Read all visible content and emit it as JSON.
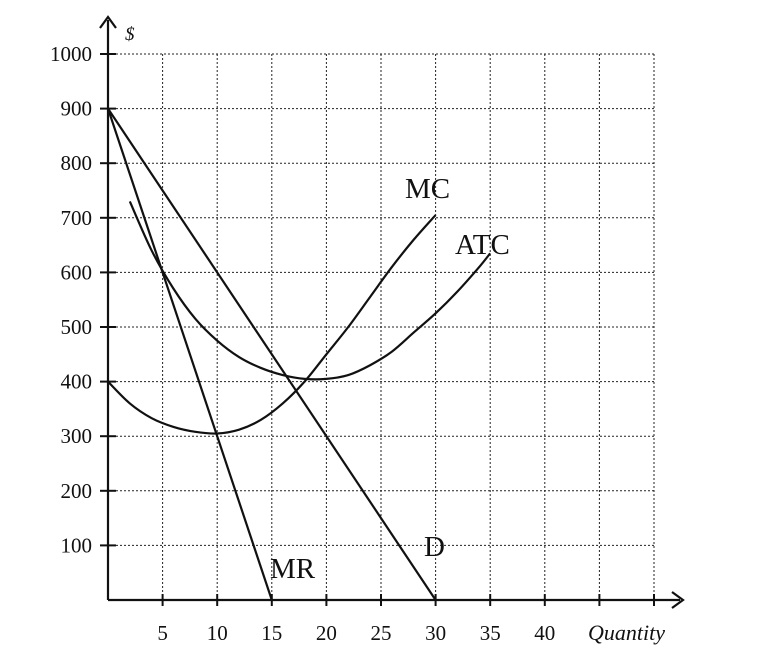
{
  "chart_data": {
    "type": "line",
    "title": "",
    "xlabel": "Quantity",
    "ylabel": "$",
    "xlim": [
      0,
      50
    ],
    "ylim": [
      0,
      1000
    ],
    "grid": true,
    "x_ticks": [
      5,
      10,
      15,
      20,
      25,
      30,
      35,
      40
    ],
    "y_ticks": [
      100,
      200,
      300,
      400,
      500,
      600,
      700,
      800,
      900,
      1000
    ],
    "series": [
      {
        "name": "D",
        "points": [
          [
            0,
            900
          ],
          [
            30,
            0
          ]
        ]
      },
      {
        "name": "MR",
        "points": [
          [
            0,
            900
          ],
          [
            15,
            0
          ]
        ]
      },
      {
        "name": "MC",
        "points": [
          [
            0,
            400
          ],
          [
            2,
            360
          ],
          [
            4,
            333
          ],
          [
            6,
            317
          ],
          [
            8,
            308
          ],
          [
            10,
            305
          ],
          [
            12,
            312
          ],
          [
            14,
            330
          ],
          [
            16,
            360
          ],
          [
            18,
            400
          ],
          [
            20,
            450
          ],
          [
            22,
            500
          ],
          [
            24,
            555
          ],
          [
            26,
            610
          ],
          [
            28,
            660
          ],
          [
            30,
            705
          ]
        ]
      },
      {
        "name": "ATC",
        "points": [
          [
            2,
            730
          ],
          [
            4,
            640
          ],
          [
            6,
            570
          ],
          [
            8,
            515
          ],
          [
            10,
            475
          ],
          [
            12,
            445
          ],
          [
            14,
            425
          ],
          [
            16,
            412
          ],
          [
            18,
            405
          ],
          [
            20,
            405
          ],
          [
            22,
            412
          ],
          [
            24,
            430
          ],
          [
            26,
            455
          ],
          [
            28,
            490
          ],
          [
            30,
            525
          ],
          [
            32,
            565
          ],
          [
            34,
            610
          ],
          [
            35,
            635
          ]
        ]
      }
    ]
  }
}
